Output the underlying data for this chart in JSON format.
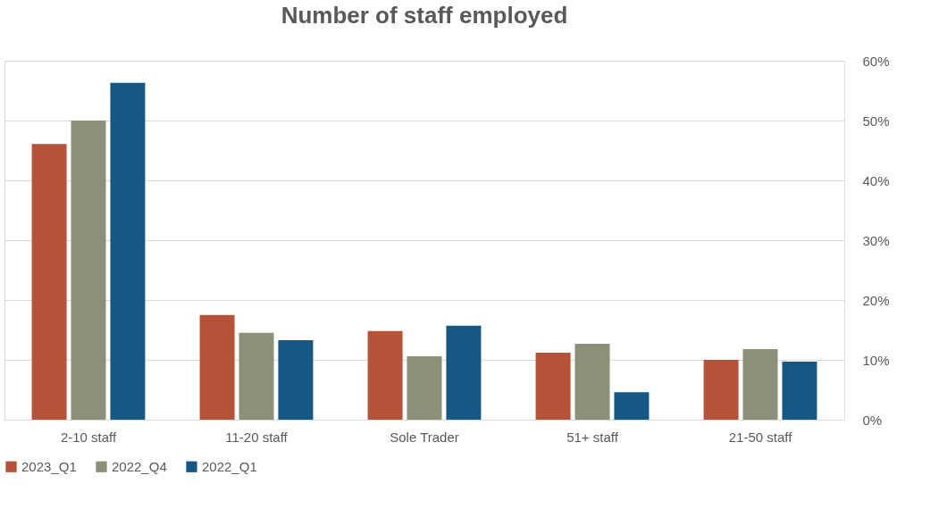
{
  "chart_data": {
    "type": "bar",
    "title": "Number of staff employed",
    "categories": [
      "2-10 staff",
      "11-20 staff",
      "Sole Trader",
      "51+ staff",
      "21-50 staff"
    ],
    "series": [
      {
        "name": "2023_Q1",
        "color": "#b5533a",
        "values": [
          46.1,
          17.5,
          14.8,
          11.2,
          10.0
        ]
      },
      {
        "name": "2022_Q4",
        "color": "#8b9078",
        "values": [
          50.0,
          14.5,
          10.6,
          12.7,
          11.8
        ]
      },
      {
        "name": "2022_Q1",
        "color": "#175783",
        "values": [
          56.3,
          13.3,
          15.7,
          4.6,
          9.7
        ]
      }
    ],
    "ylim": [
      0,
      60
    ],
    "yticks": [
      {
        "value": 0,
        "label": "0%"
      },
      {
        "value": 10,
        "label": "10%"
      },
      {
        "value": 20,
        "label": "20%"
      },
      {
        "value": 30,
        "label": "30%"
      },
      {
        "value": 40,
        "label": "40%"
      },
      {
        "value": 50,
        "label": "50%"
      },
      {
        "value": 60,
        "label": "60%"
      }
    ],
    "grid": "y",
    "legend": "bottom"
  }
}
